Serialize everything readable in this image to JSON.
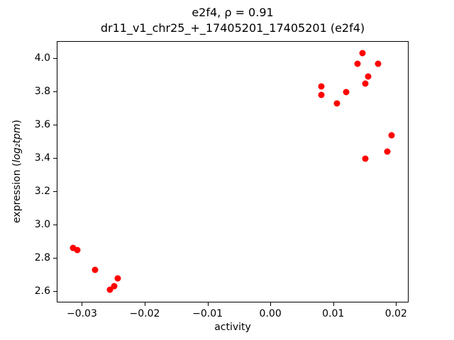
{
  "figure": {
    "title_line1": "e2f4, ρ = 0.91",
    "title_line2": "dr11_v1_chr25_+_17405201_17405201 (e2f4)",
    "ylabel_prefix": "expression (",
    "ylabel_math": "log₂tpm",
    "ylabel_suffix": ")"
  },
  "chart_data": {
    "type": "scatter",
    "title": "e2f4, ρ = 0.91\ndr11_v1_chr25_+_17405201_17405201 (e2f4)",
    "xlabel": "activity",
    "ylabel": "expression (log₂tpm)",
    "marker_color": "#ff0000",
    "background_color": "#ffffff",
    "grid": false,
    "legend": "none",
    "xlim": [
      -0.034,
      0.022
    ],
    "ylim": [
      2.53,
      4.1
    ],
    "xticks": [
      -0.03,
      -0.02,
      -0.01,
      0.0,
      0.01,
      0.02
    ],
    "xtick_labels": [
      "−0.03",
      "−0.02",
      "−0.01",
      "0.00",
      "0.01",
      "0.02"
    ],
    "yticks": [
      2.6,
      2.8,
      3.0,
      3.2,
      3.4,
      3.6,
      3.8,
      4.0
    ],
    "ytick_labels": [
      "2.6",
      "2.8",
      "3.0",
      "3.2",
      "3.4",
      "3.6",
      "3.8",
      "4.0"
    ],
    "points": [
      {
        "x": -0.0315,
        "y": 2.86
      },
      {
        "x": -0.0308,
        "y": 2.85
      },
      {
        "x": -0.028,
        "y": 2.73
      },
      {
        "x": -0.0256,
        "y": 2.61
      },
      {
        "x": -0.025,
        "y": 2.63
      },
      {
        "x": -0.0244,
        "y": 2.68
      },
      {
        "x": 0.008,
        "y": 3.83
      },
      {
        "x": 0.008,
        "y": 3.78
      },
      {
        "x": 0.0105,
        "y": 3.73
      },
      {
        "x": 0.012,
        "y": 3.8
      },
      {
        "x": 0.0138,
        "y": 3.97
      },
      {
        "x": 0.0145,
        "y": 4.03
      },
      {
        "x": 0.015,
        "y": 3.85
      },
      {
        "x": 0.0155,
        "y": 3.89
      },
      {
        "x": 0.017,
        "y": 3.97
      },
      {
        "x": 0.015,
        "y": 3.4
      },
      {
        "x": 0.0185,
        "y": 3.44
      },
      {
        "x": 0.0192,
        "y": 3.54
      }
    ]
  }
}
